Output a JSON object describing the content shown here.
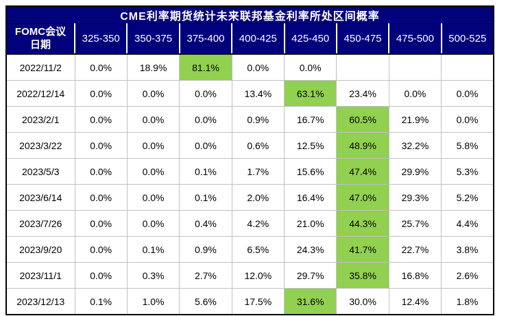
{
  "page": {
    "background": "#ffffff"
  },
  "colors": {
    "header_bg": "#01017b",
    "header_text": "#ffffff",
    "highlight": "#92d050",
    "grid_line": "#c0c0c0",
    "outer_border": "#000000",
    "body_text": "#000000"
  },
  "chart_data": {
    "type": "table",
    "title": "CME利率期货统计未来联邦基金利率所处区间概率",
    "row_header": {
      "line1": "FOMC会议",
      "line2": "日期"
    },
    "columns": [
      "325-350",
      "350-375",
      "375-400",
      "400-425",
      "425-450",
      "450-475",
      "475-500",
      "500-525"
    ],
    "rows": [
      {
        "date": "2022/11/2",
        "values": [
          "0.0%",
          "18.9%",
          "81.1%",
          "0.0%",
          "0.0%",
          "",
          "",
          ""
        ],
        "highlight_index": 2
      },
      {
        "date": "2022/12/14",
        "values": [
          "0.0%",
          "0.0%",
          "0.0%",
          "13.4%",
          "63.1%",
          "23.4%",
          "0.0%",
          "0.0%"
        ],
        "highlight_index": 4
      },
      {
        "date": "2023/2/1",
        "values": [
          "0.0%",
          "0.0%",
          "0.0%",
          "0.9%",
          "16.7%",
          "60.5%",
          "21.9%",
          "0.0%"
        ],
        "highlight_index": 5
      },
      {
        "date": "2023/3/22",
        "values": [
          "0.0%",
          "0.0%",
          "0.0%",
          "0.6%",
          "12.5%",
          "48.9%",
          "32.2%",
          "5.8%"
        ],
        "highlight_index": 5
      },
      {
        "date": "2023/5/3",
        "values": [
          "0.0%",
          "0.0%",
          "0.1%",
          "1.7%",
          "15.6%",
          "47.4%",
          "29.9%",
          "5.3%"
        ],
        "highlight_index": 5
      },
      {
        "date": "2023/6/14",
        "values": [
          "0.0%",
          "0.0%",
          "0.1%",
          "2.0%",
          "16.4%",
          "47.0%",
          "29.3%",
          "5.2%"
        ],
        "highlight_index": 5
      },
      {
        "date": "2023/7/26",
        "values": [
          "0.0%",
          "0.0%",
          "0.4%",
          "4.2%",
          "21.0%",
          "44.3%",
          "25.7%",
          "4.4%"
        ],
        "highlight_index": 5
      },
      {
        "date": "2023/9/20",
        "values": [
          "0.0%",
          "0.1%",
          "0.9%",
          "6.5%",
          "24.3%",
          "41.7%",
          "22.7%",
          "3.8%"
        ],
        "highlight_index": 5
      },
      {
        "date": "2023/11/1",
        "values": [
          "0.0%",
          "0.3%",
          "2.7%",
          "12.0%",
          "29.7%",
          "35.8%",
          "16.8%",
          "2.6%"
        ],
        "highlight_index": 5
      },
      {
        "date": "2023/12/13",
        "values": [
          "0.1%",
          "1.0%",
          "5.6%",
          "17.5%",
          "31.6%",
          "30.0%",
          "12.4%",
          "1.8%"
        ],
        "highlight_index": 4
      }
    ]
  }
}
